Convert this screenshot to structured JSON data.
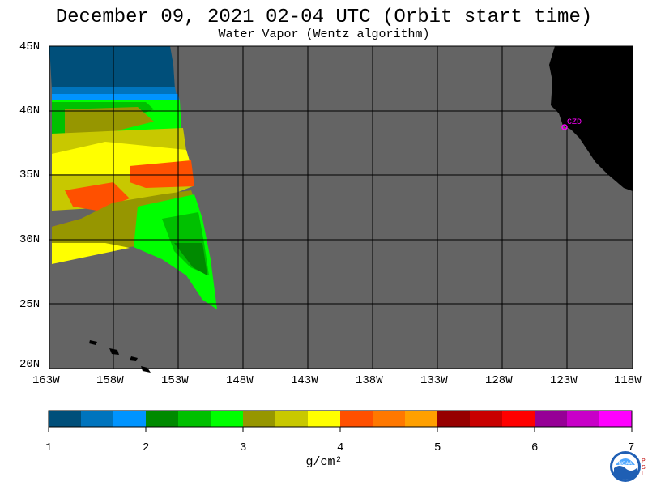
{
  "title": "December 09, 2021  02-04 UTC  (Orbit start time)",
  "subtitle": "Water Vapor (Wentz algorithm)",
  "map": {
    "lat_labels": [
      "45N",
      "40N",
      "35N",
      "30N",
      "25N",
      "20N"
    ],
    "lon_labels": [
      "163W",
      "158W",
      "153W",
      "148W",
      "143W",
      "138W",
      "133W",
      "128W",
      "123W",
      "118W"
    ],
    "station_label": "CZD",
    "colors": {
      "ocean_nodata": "#646464",
      "land": "#000000",
      "grid": "#000000",
      "station": "#ff00ff"
    }
  },
  "colorbar": {
    "ticks": [
      "1",
      "2",
      "3",
      "4",
      "5",
      "6",
      "7"
    ],
    "unit": "g/cm²",
    "colors": [
      "#004f7a",
      "#0074bd",
      "#0094ff",
      "#008a00",
      "#00c000",
      "#00ff00",
      "#969600",
      "#c8c800",
      "#ffff00",
      "#ff5000",
      "#ff7800",
      "#ffa000",
      "#960000",
      "#c80000",
      "#ff0000",
      "#960096",
      "#c800c8",
      "#ff00ff"
    ]
  },
  "logo": {
    "icon": "noaa-logo-icon",
    "side_text": "PSL"
  }
}
